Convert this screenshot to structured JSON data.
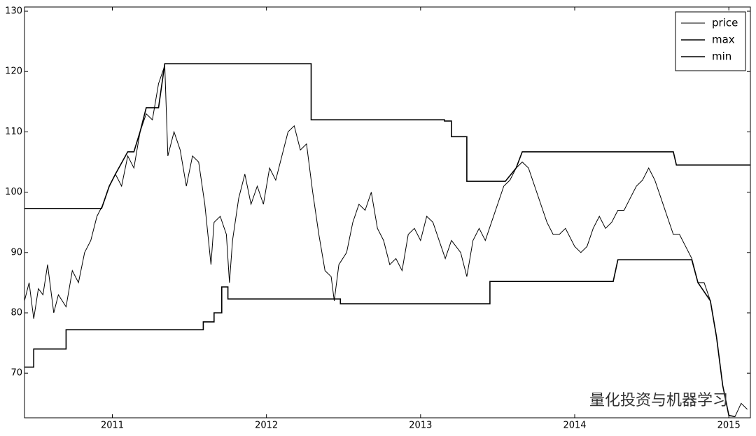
{
  "chart_data": {
    "type": "line",
    "xlim": [
      2010.43,
      2015.14
    ],
    "ylim": [
      62.6,
      130.7
    ],
    "xticks": [
      2011,
      2012,
      2013,
      2014,
      2015
    ],
    "yticks": [
      70,
      80,
      90,
      100,
      110,
      120,
      130
    ],
    "legend": "upper right",
    "annotation": "量化投资与机器学习",
    "series": [
      {
        "name": "price",
        "color": "#000000",
        "x": [
          2010.43,
          2010.46,
          2010.49,
          2010.52,
          2010.55,
          2010.58,
          2010.62,
          2010.65,
          2010.7,
          2010.74,
          2010.78,
          2010.82,
          2010.86,
          2010.9,
          2010.94,
          2010.98,
          2011.02,
          2011.06,
          2011.1,
          2011.14,
          2011.18,
          2011.22,
          2011.26,
          2011.3,
          2011.34,
          2011.36,
          2011.4,
          2011.44,
          2011.48,
          2011.52,
          2011.56,
          2011.6,
          2011.64,
          2011.66,
          2011.7,
          2011.74,
          2011.76,
          2011.78,
          2011.82,
          2011.86,
          2011.9,
          2011.94,
          2011.98,
          2012.02,
          2012.06,
          2012.1,
          2012.14,
          2012.18,
          2012.22,
          2012.26,
          2012.3,
          2012.34,
          2012.38,
          2012.42,
          2012.44,
          2012.47,
          2012.52,
          2012.56,
          2012.6,
          2012.64,
          2012.68,
          2012.72,
          2012.76,
          2012.8,
          2012.84,
          2012.88,
          2012.92,
          2012.96,
          2013.0,
          2013.04,
          2013.08,
          2013.12,
          2013.16,
          2013.2,
          2013.26,
          2013.3,
          2013.34,
          2013.38,
          2013.42,
          2013.46,
          2013.5,
          2013.54,
          2013.58,
          2013.62,
          2013.66,
          2013.7,
          2013.74,
          2013.78,
          2013.82,
          2013.86,
          2013.9,
          2013.94,
          2014.0,
          2014.04,
          2014.08,
          2014.12,
          2014.16,
          2014.2,
          2014.24,
          2014.28,
          2014.32,
          2014.36,
          2014.4,
          2014.44,
          2014.48,
          2014.52,
          2014.56,
          2014.6,
          2014.64,
          2014.68,
          2014.72,
          2014.76,
          2014.8,
          2014.84,
          2014.88,
          2014.92,
          2014.96,
          2015.0,
          2015.04,
          2015.08,
          2015.12
        ],
        "values": [
          82,
          85,
          79,
          84,
          83,
          88,
          80,
          83,
          81,
          87,
          85,
          90,
          92,
          96,
          98,
          101,
          103,
          101,
          106,
          104,
          110,
          113,
          112,
          118,
          121,
          106,
          110,
          107,
          101,
          106,
          105,
          98,
          88,
          95,
          96,
          93,
          85,
          92,
          99,
          103,
          98,
          101,
          98,
          104,
          102,
          106,
          110,
          111,
          107,
          108,
          100,
          93,
          87,
          86,
          82,
          88,
          90,
          95,
          98,
          97,
          100,
          94,
          92,
          88,
          89,
          87,
          93,
          94,
          92,
          96,
          95,
          92,
          89,
          92,
          90,
          86,
          92,
          94,
          92,
          95,
          98,
          101,
          102,
          104,
          105,
          104,
          101,
          98,
          95,
          93,
          93,
          94,
          91,
          90,
          91,
          94,
          96,
          94,
          95,
          97,
          97,
          99,
          101,
          102,
          104,
          102,
          99,
          96,
          93,
          93,
          91,
          89,
          85,
          85,
          82,
          76,
          68,
          63,
          62.8,
          65,
          64
        ]
      },
      {
        "name": "max",
        "color": "#000000",
        "x": [
          2010.43,
          2010.93,
          2010.98,
          2011.02,
          2011.1,
          2011.14,
          2011.18,
          2011.22,
          2011.3,
          2011.34,
          2012.29,
          2012.29,
          2013.155,
          2013.155,
          2013.2,
          2013.2,
          2013.3,
          2013.3,
          2013.55,
          2013.62,
          2013.66,
          2014.64,
          2014.66,
          2015.14
        ],
        "values": [
          97.3,
          97.3,
          101,
          103,
          106.7,
          106.7,
          110,
          114,
          114,
          121.3,
          121.3,
          112,
          112,
          111.8,
          111.8,
          109.2,
          109.2,
          101.8,
          101.8,
          104,
          106.7,
          106.7,
          104.5,
          104.5
        ]
      },
      {
        "name": "min",
        "color": "#000000",
        "x": [
          2010.43,
          2010.49,
          2010.49,
          2010.7,
          2010.7,
          2011.59,
          2011.59,
          2011.66,
          2011.66,
          2011.71,
          2011.71,
          2011.75,
          2011.75,
          2012.48,
          2012.48,
          2013.45,
          2013.45,
          2014.25,
          2014.28,
          2014.76,
          2014.8,
          2014.88,
          2014.92,
          2014.96,
          2015.0,
          2015.04
        ],
        "values": [
          71,
          71,
          74,
          74,
          77.2,
          77.2,
          78.5,
          78.5,
          80,
          80,
          84.3,
          84.3,
          82.3,
          82.3,
          81.5,
          81.5,
          85.2,
          85.2,
          88.8,
          88.8,
          85,
          82,
          76,
          68,
          63,
          62.8
        ]
      }
    ]
  }
}
